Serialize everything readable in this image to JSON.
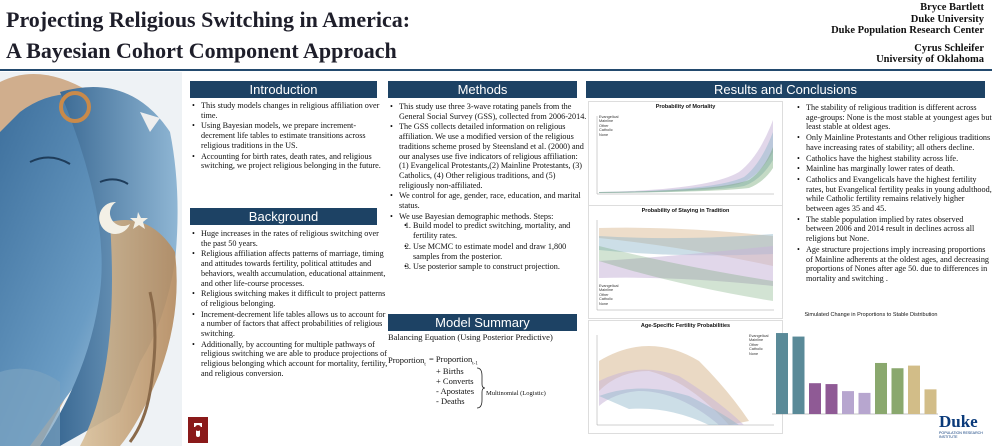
{
  "title": {
    "line1": "Projecting Religious Switching in America:",
    "line2": "A Bayesian Cohort Component Approach"
  },
  "authors": {
    "a1_name": "Bryce Bartlett",
    "a1_affil1": "Duke University",
    "a1_affil2": "Duke Population Research Center",
    "a2_name": "Cyrus Schleifer",
    "a2_affil": "University of Oklahoma"
  },
  "introduction": {
    "heading": "Introduction",
    "bullets": [
      "This study models changes in religious affiliation over time.",
      "Using Bayesian models, we prepare increment-decrement life tables to estimate transitions across religious traditions in the US.",
      "Accounting for birth rates, death rates, and religious switching, we project religious belonging in the future."
    ]
  },
  "background": {
    "heading": "Background",
    "bullets": [
      "Huge increases in the rates of religious switching over the past 50 years.",
      "Religious affiliation affects patterns of marriage, timing and attitudes towards fertility, political attitudes and behaviors, wealth accumulation, educational attainment, and other life-course processes.",
      "Religious switching makes it difficult to project patterns of religious belonging.",
      "Increment-decrement life tables allows us to account for a number of factors that affect probabilities of religious switching.",
      "Additionally, by accounting for multiple pathways of religious switching we are able to produce projections of religious belonging which account for mortality, fertility, and religious conversion."
    ]
  },
  "methods": {
    "heading": "Methods",
    "bullets": [
      "This study use three 3-wave rotating panels from the General Social Survey (GSS), collected from 2006-2014.",
      "The GSS collects detailed information on religious affiliation. We use a modified version of the religious traditions scheme prosed by Steensland et al. (2000) and our analyses use five indicators of religious affiliation: (1) Evangelical Protestants,(2) Mainline Protestants, (3) Catholics, (4) Other religious traditions, and (5) religiously non-affiliated.",
      "We control for age, gender, race, education, and marital status.",
      "We use Bayesian demographic methods. Steps:"
    ],
    "steps": [
      "Build model to predict switching, mortality, and fertility rates.",
      "Use MCMC to estimate model and draw 1,800 samples from the posterior.",
      "Use posterior sample to construct projection."
    ]
  },
  "model_summary": {
    "heading": "Model Summary",
    "subtitle": "Balancing Equation (Using Posterior Predictive)",
    "lhs": "Proportion",
    "lhs_sub": "t",
    "rhs": "= Proportion",
    "rhs_sub": "t-1",
    "terms": [
      "+ Births",
      "+ Converts",
      "- Apostates",
      "- Deaths"
    ],
    "note": "Multinomial (Logistic)"
  },
  "results": {
    "heading": "Results and Conclusions",
    "bullets": [
      "The stability of religious tradition is different across age-groups: None is the most stable at youngest ages but least stable at oldest ages.",
      "Only Mainline Protestants and Other religious traditions have increasing rates of stability; all others decline.",
      "Catholics have the highest stability across life.",
      "Mainline has marginally lower rates of death.",
      "Catholics and Evangelicals have the highest fertility rates, but Evangelical fertility peaks in young adulthood, while Catholic fertility remains relatively higher between ages 35 and 45.",
      "The stable population implied by rates observed between 2006 and 2014 result in declines across all religions but None.",
      "Age structure projections imply increasing proportions of Mainline adherents at the oldest ages, and decreasing proportions of Nones after age 50. due to differences in mortality and switching ."
    ]
  },
  "charts": {
    "mortality_title": "Probability of Mortality",
    "staying_title": "Probability of Staying in Tradition",
    "fertility_title": "Age-Specific Fertility Probabilities",
    "bar_title": "Simulated Change in Proportions to Stable Distribution",
    "legend": [
      "Evangelical",
      "Mainline",
      "Other",
      "Catholic",
      "None"
    ]
  },
  "chart_data": [
    {
      "type": "line",
      "title": "Probability of Mortality",
      "series": [
        {
          "name": "Evangelical",
          "color": "#9a9a9a"
        },
        {
          "name": "Mainline",
          "color": "#6ba26e"
        },
        {
          "name": "Other",
          "color": "#c9b6d8"
        },
        {
          "name": "Catholic",
          "color": "#8fb5c9"
        },
        {
          "name": "None",
          "color": "#d6b48a"
        }
      ]
    },
    {
      "type": "line",
      "title": "Probability of Staying in Tradition",
      "series": [
        {
          "name": "Evangelical"
        },
        {
          "name": "Mainline"
        },
        {
          "name": "Other"
        },
        {
          "name": "Catholic"
        },
        {
          "name": "None"
        }
      ]
    },
    {
      "type": "area",
      "title": "Age-Specific Fertility Probabilities",
      "series": [
        {
          "name": "Evangelical"
        },
        {
          "name": "Mainline"
        },
        {
          "name": "Other"
        },
        {
          "name": "Catholic"
        },
        {
          "name": "None"
        }
      ]
    },
    {
      "type": "bar",
      "title": "Simulated Change in Proportions to Stable Distribution",
      "values": [
        0.92,
        0.88,
        0.35,
        0.34,
        0.26,
        0.24,
        0.58,
        0.52,
        0.55,
        0.28
      ],
      "colors": [
        "#5a8a98",
        "#5a8a98",
        "#8f5a95",
        "#8f5a95",
        "#b7a6cf",
        "#b7a6cf",
        "#8aa86e",
        "#8aa86e",
        "#d2bd88",
        "#d2bd88"
      ]
    }
  ],
  "logos": {
    "duke": "Duke",
    "duke_sub": "POPULATION RESEARCH INSTITUTE"
  }
}
